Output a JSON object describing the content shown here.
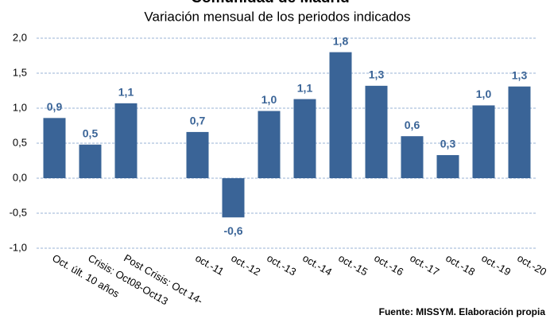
{
  "chart_data": {
    "type": "bar",
    "title": "Comunidad de Madrid",
    "subtitle": "Variación mensual de los periodos indicados",
    "categories": [
      "Oct. últ. 10 años",
      "Crisis: Oct08-Oct13",
      "Post Crisis: Oct 14-",
      null,
      "oct.-11",
      "oct.-12",
      "oct.-13",
      "oct.-14",
      "oct.-15",
      "oct.-16",
      "oct.-17",
      "oct.-18",
      "oct.-19",
      "oct.-20"
    ],
    "values": [
      0.86,
      0.48,
      1.07,
      null,
      0.66,
      -0.56,
      0.96,
      1.13,
      1.8,
      1.32,
      0.6,
      0.33,
      1.04,
      1.31
    ],
    "value_labels": [
      "0,9",
      "0,5",
      "1,1",
      null,
      "0,7",
      "-0,6",
      "1,0",
      "1,1",
      "1,8",
      "1,3",
      "0,6",
      "0,3",
      "1,0",
      "1,3"
    ],
    "color": "#3a6497",
    "ylim": [
      -1,
      2
    ],
    "yticks": [
      {
        "value": -1,
        "label": "-1,0"
      },
      {
        "value": -0.5,
        "label": "-0,5"
      },
      {
        "value": 0,
        "label": "0,0"
      },
      {
        "value": 0.5,
        "label": "0,5"
      },
      {
        "value": 1,
        "label": "1,0"
      },
      {
        "value": 1.5,
        "label": "1,5"
      },
      {
        "value": 2,
        "label": "2,0"
      }
    ],
    "grid": true,
    "source": "Fuente: MISSYM. Elaboración propia"
  }
}
